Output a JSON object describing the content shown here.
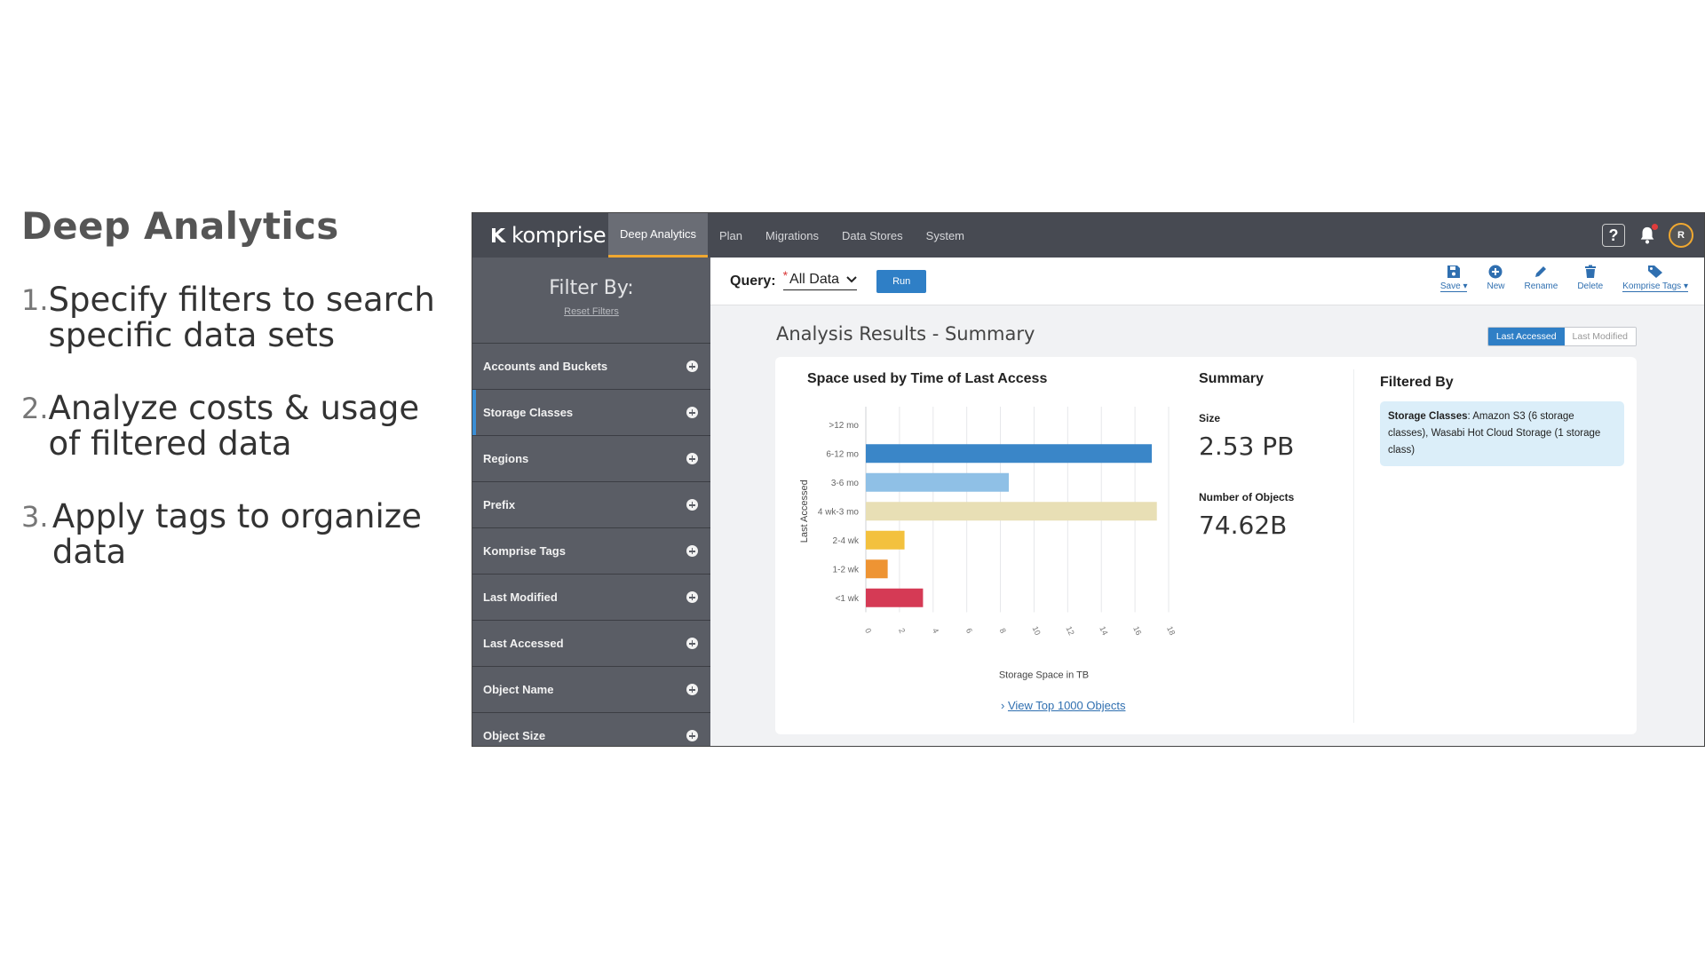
{
  "slide": {
    "title": "Deep Analytics",
    "bullets": [
      {
        "num": "1.",
        "text": "Specify filters to search specific data sets"
      },
      {
        "num": "2.",
        "text": "Analyze costs & usage of filtered data"
      },
      {
        "num": "3.",
        "text": "Apply tags to organize data"
      }
    ]
  },
  "app": {
    "logo_text": "komprise",
    "nav": [
      "Deep Analytics",
      "Plan",
      "Migrations",
      "Data Stores",
      "System"
    ],
    "active_nav": "Deep Analytics",
    "help_label": "?",
    "avatar_initial": "R"
  },
  "sidebar": {
    "title": "Filter By:",
    "reset": "Reset Filters",
    "filters": [
      "Accounts and Buckets",
      "Storage Classes",
      "Regions",
      "Prefix",
      "Komprise Tags",
      "Last Modified",
      "Last Accessed",
      "Object Name",
      "Object Size"
    ],
    "selected_filter": "Storage Classes"
  },
  "query": {
    "label": "Query:",
    "required_mark": "*",
    "value": "All Data",
    "run_label": "Run"
  },
  "actions": [
    {
      "label": "Save",
      "icon": "save-icon"
    },
    {
      "label": "New",
      "icon": "plus-circle-icon"
    },
    {
      "label": "Rename",
      "icon": "pencil-icon"
    },
    {
      "label": "Delete",
      "icon": "trash-icon"
    },
    {
      "label": "Komprise Tags",
      "icon": "tag-icon"
    }
  ],
  "results": {
    "title": "Analysis Results - Summary",
    "toggle": [
      "Last Accessed",
      "Last Modified"
    ],
    "toggle_active": "Last Accessed",
    "view_link": "View Top 1000 Objects"
  },
  "summary": {
    "title": "Summary",
    "size_label": "Size",
    "size_value": "2.53 PB",
    "objects_label": "Number of Objects",
    "objects_value": "74.62B"
  },
  "filtered_by": {
    "title": "Filtered By",
    "key": "Storage Classes",
    "value": ": Amazon S3 (6 storage classes), Wasabi Hot Cloud Storage (1 storage class)"
  },
  "colors": {
    "accent": "#2f7fc6",
    "nav_underline": "#f0a830",
    "topbar": "#474a52",
    "sidebar": "#5a5d65"
  },
  "chart_data": {
    "type": "bar",
    "orientation": "horizontal",
    "title": "Space used by Time of Last Access",
    "xlabel": "Storage Space in TB",
    "ylabel": "Last Accessed",
    "categories": [
      ">12 mo",
      "6-12 mo",
      "3-6 mo",
      "4 wk-3 mo",
      "2-4 wk",
      "1-2 wk",
      "<1 wk"
    ],
    "values": [
      0,
      17,
      8.5,
      17.3,
      2.3,
      1.3,
      3.4
    ],
    "bar_colors": [
      "#3a86c8",
      "#3a86c8",
      "#8fc0e6",
      "#e8dfb5",
      "#f3c13e",
      "#ee9433",
      "#d53a55"
    ],
    "xlim": [
      0,
      18
    ],
    "xticks": [
      "0",
      "2",
      "4",
      "6",
      "8",
      "10",
      "12",
      "14",
      "16",
      "18"
    ],
    "grid": true,
    "legend": "none"
  }
}
